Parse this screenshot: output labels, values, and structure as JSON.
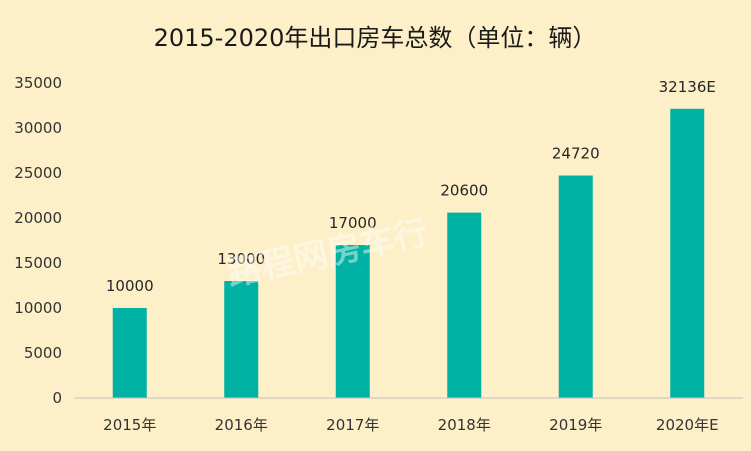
{
  "chart_data": {
    "type": "bar",
    "title": "2015-2020年出口房车总数（单位：辆）",
    "categories": [
      "2015年",
      "2016年",
      "2017年",
      "2018年",
      "2019年",
      "2020年E"
    ],
    "values": [
      10000,
      13000,
      17000,
      20600,
      24720,
      32136
    ],
    "data_labels": [
      "10000",
      "13000",
      "17000",
      "20600",
      "24720",
      "32136E"
    ],
    "ylim": [
      0,
      35000
    ],
    "yticks": [
      0,
      5000,
      10000,
      15000,
      20000,
      25000,
      30000,
      35000
    ],
    "xlabel": "",
    "ylabel": "",
    "grid": false,
    "legend": "none",
    "colors": {
      "bar": "#00b2a3",
      "background": "#fdf0c8",
      "axis": "#bfbfbf"
    }
  },
  "watermark": "路程网房车行"
}
